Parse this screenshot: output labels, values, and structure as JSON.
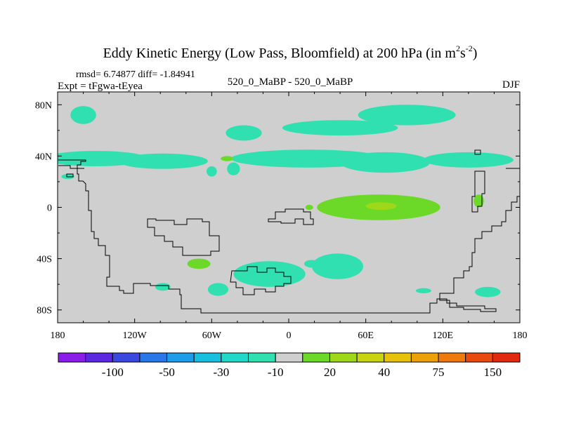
{
  "chart_data": {
    "type": "filled-contour-map",
    "title": "Eddy Kinetic Energy (Low Pass, Bloomfield) at 200 hPa (in m",
    "title_sup1": "2",
    "title_mid": "s",
    "title_sup2": "-2",
    "title_end": ")",
    "stats": "rmsd= 6.74877  diff= -1.84941",
    "expt": "Expt = tFgwa-tEyea",
    "center_label": "520_0_MaBP - 520_0_MaBP",
    "season": "DJF",
    "x_ticks": [
      {
        "lon": -180,
        "label": "180"
      },
      {
        "lon": -120,
        "label": "120W"
      },
      {
        "lon": -60,
        "label": "60W"
      },
      {
        "lon": 0,
        "label": "0"
      },
      {
        "lon": 60,
        "label": "60E"
      },
      {
        "lon": 120,
        "label": "120E"
      },
      {
        "lon": 180,
        "label": "180"
      }
    ],
    "y_ticks": [
      {
        "lat": 80,
        "label": "80N"
      },
      {
        "lat": 40,
        "label": "40N"
      },
      {
        "lat": 0,
        "label": "0"
      },
      {
        "lat": -40,
        "label": "40S"
      },
      {
        "lat": -80,
        "label": "80S"
      }
    ],
    "xlim": [
      -180,
      180
    ],
    "ylim": [
      -90,
      90
    ],
    "colorbar": {
      "levels": [
        -150,
        -100,
        -75,
        -50,
        -40,
        -30,
        -20,
        -10,
        10,
        20,
        30,
        40,
        50,
        75,
        100,
        150
      ],
      "colors": [
        "#8a1ee8",
        "#5a28e0",
        "#3a48e0",
        "#2a78e8",
        "#1e9ee8",
        "#18c0e0",
        "#22d8c8",
        "#30e0b0",
        "#cfcfcf",
        "#6cd828",
        "#9ed818",
        "#c8d410",
        "#e6c20a",
        "#eca00a",
        "#ee7a0c",
        "#e84a10",
        "#e02a10"
      ],
      "labels": [
        {
          "after_level_index": 1,
          "text": "-100"
        },
        {
          "after_level_index": 3,
          "text": "-50"
        },
        {
          "after_level_index": 5,
          "text": "-30"
        },
        {
          "after_level_index": 7,
          "text": "-10"
        },
        {
          "after_level_index": 9,
          "text": "20"
        },
        {
          "after_level_index": 11,
          "text": "40"
        },
        {
          "after_level_index": 13,
          "text": "75"
        },
        {
          "after_level_index": 15,
          "text": "150"
        }
      ]
    },
    "background_color": "#cfcfcf",
    "coastline_color": "#000000",
    "anomaly_regions": [
      {
        "level": -10,
        "color": "#30e0b0",
        "lon": -160,
        "lat": 72,
        "rlon": 10,
        "rlat": 7
      },
      {
        "level": -10,
        "color": "#30e0b0",
        "lon": -150,
        "lat": 38,
        "rlon": 40,
        "rlat": 6
      },
      {
        "level": -10,
        "color": "#30e0b0",
        "lon": -98,
        "lat": 36,
        "rlon": 35,
        "rlat": 6
      },
      {
        "level": -10,
        "color": "#30e0b0",
        "lon": -35,
        "lat": 58,
        "rlon": 14,
        "rlat": 6
      },
      {
        "level": -10,
        "color": "#30e0b0",
        "lon": 15,
        "lat": 38,
        "rlon": 60,
        "rlat": 7
      },
      {
        "level": -10,
        "color": "#30e0b0",
        "lon": 75,
        "lat": 35,
        "rlon": 35,
        "rlat": 8
      },
      {
        "level": -10,
        "color": "#30e0b0",
        "lon": 140,
        "lat": 37,
        "rlon": 35,
        "rlat": 6
      },
      {
        "level": -10,
        "color": "#30e0b0",
        "lon": 40,
        "lat": 62,
        "rlon": 45,
        "rlat": 6
      },
      {
        "level": -10,
        "color": "#30e0b0",
        "lon": 92,
        "lat": 72,
        "rlon": 38,
        "rlat": 8
      },
      {
        "level": -10,
        "color": "#30e0b0",
        "lon": -60,
        "lat": 28,
        "rlon": 4,
        "rlat": 4
      },
      {
        "level": -10,
        "color": "#30e0b0",
        "lon": -43,
        "lat": 30,
        "rlon": 5,
        "rlat": 5
      },
      {
        "level": -10,
        "color": "#30e0b0",
        "lon": -172,
        "lat": 24,
        "rlon": 5,
        "rlat": 2
      },
      {
        "level": -10,
        "color": "#30e0b0",
        "lon": -15,
        "lat": -52,
        "rlon": 28,
        "rlat": 10
      },
      {
        "level": -10,
        "color": "#30e0b0",
        "lon": 38,
        "lat": -46,
        "rlon": 20,
        "rlat": 10
      },
      {
        "level": -10,
        "color": "#30e0b0",
        "lon": -55,
        "lat": -64,
        "rlon": 8,
        "rlat": 5
      },
      {
        "level": -10,
        "color": "#30e0b0",
        "lon": -98,
        "lat": -62,
        "rlon": 6,
        "rlat": 3
      },
      {
        "level": -10,
        "color": "#30e0b0",
        "lon": 155,
        "lat": -66,
        "rlon": 10,
        "rlat": 4
      },
      {
        "level": -10,
        "color": "#30e0b0",
        "lon": 105,
        "lat": -65,
        "rlon": 6,
        "rlat": 2
      },
      {
        "level": -10,
        "color": "#30e0b0",
        "lon": 18,
        "lat": -44,
        "rlon": 6,
        "rlat": 3
      },
      {
        "level": 10,
        "color": "#6cd828",
        "lon": 70,
        "lat": 0,
        "rlon": 48,
        "rlat": 10
      },
      {
        "level": 10,
        "color": "#6cd828",
        "lon": -70,
        "lat": -44,
        "rlon": 9,
        "rlat": 4
      },
      {
        "level": 10,
        "color": "#6cd828",
        "lon": 148,
        "lat": 5,
        "rlon": 4,
        "rlat": 5
      },
      {
        "level": 10,
        "color": "#6cd828",
        "lon": 16,
        "lat": 0,
        "rlon": 3,
        "rlat": 2
      },
      {
        "level": 10,
        "color": "#6cd828",
        "lon": -48,
        "lat": 38,
        "rlon": 5,
        "rlat": 2
      },
      {
        "level": 20,
        "color": "#9ed818",
        "lon": 72,
        "lat": 1,
        "rlon": 12,
        "rlat": 3
      }
    ]
  }
}
